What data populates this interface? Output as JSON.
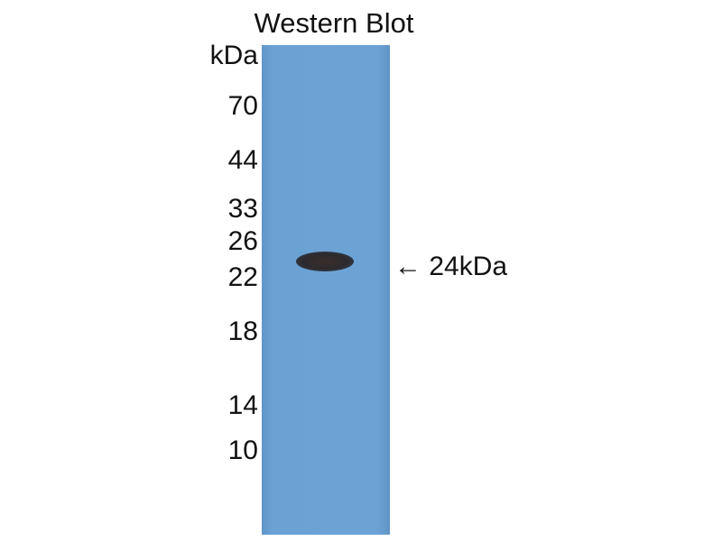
{
  "title": "Western Blot",
  "unit_label": "kDa",
  "markers": [
    "70",
    "44",
    "33",
    "26",
    "22",
    "18",
    "14",
    "10"
  ],
  "band_annotation": {
    "arrow": "←",
    "label": "24kDa"
  },
  "colors": {
    "membrane": "#6ba2d4",
    "band": "#2c2a2e"
  }
}
